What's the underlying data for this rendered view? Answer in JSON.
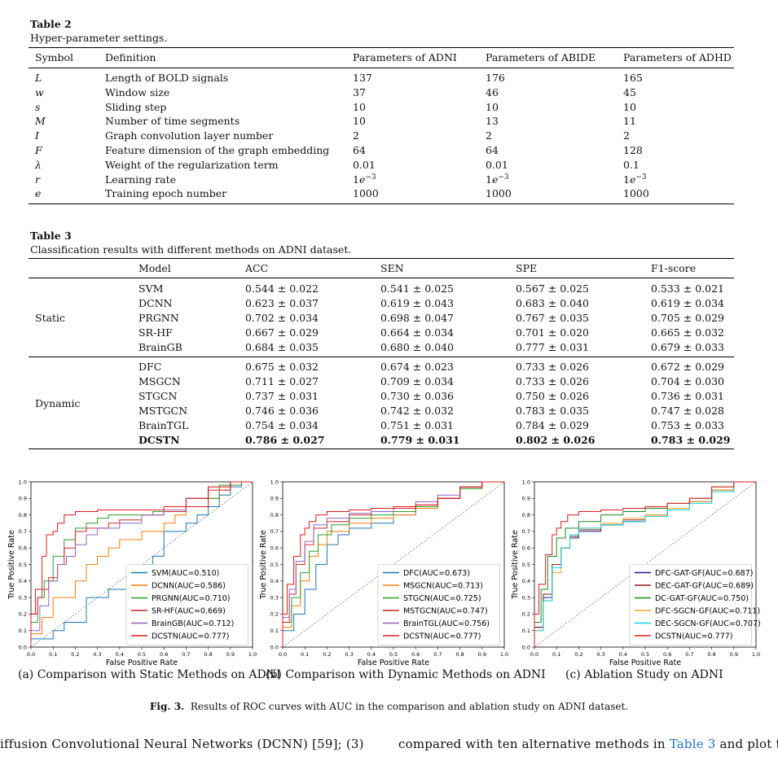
{
  "table2": {
    "label": "Table 2",
    "caption": "Hyper-parameter settings.",
    "headers": [
      "Symbol",
      "Definition",
      "Parameters of ADNI",
      "Parameters of ABIDE",
      "Parameters of ADHD"
    ],
    "rows": [
      {
        "sym": "L",
        "def": "Length of BOLD signals",
        "adni": "137",
        "abide": "176",
        "adhd": "165"
      },
      {
        "sym": "w",
        "def": "Window size",
        "adni": "37",
        "abide": "46",
        "adhd": "45"
      },
      {
        "sym": "s",
        "def": "Sliding step",
        "adni": "10",
        "abide": "10",
        "adhd": "10"
      },
      {
        "sym": "M",
        "def": "Number of time segments",
        "adni": "10",
        "abide": "13",
        "adhd": "11"
      },
      {
        "sym": "I",
        "def": "Graph convolution layer number",
        "adni": "2",
        "abide": "2",
        "adhd": "2"
      },
      {
        "sym": "F",
        "def": "Feature dimension of the graph embedding",
        "adni": "64",
        "abide": "64",
        "adhd": "128"
      },
      {
        "sym": "λ",
        "def": "Weight of the regularization term",
        "adni": "0.01",
        "abide": "0.01",
        "adhd": "0.1"
      },
      {
        "sym": "r",
        "def": "Learning rate",
        "adni": "1e−3",
        "abide": "1e−3",
        "adhd": "1e−3"
      },
      {
        "sym": "e",
        "def": "Training epoch number",
        "adni": "1000",
        "abide": "1000",
        "adhd": "1000"
      }
    ]
  },
  "table3": {
    "label": "Table 3",
    "caption": "Classification results with different methods on ADNI dataset.",
    "headers": [
      "Model",
      "ACC",
      "SEN",
      "SPE",
      "F1-score"
    ],
    "groups": [
      {
        "name": "Static",
        "rows": [
          {
            "model": "SVM",
            "acc": "0.544 ± 0.022",
            "sen": "0.541 ± 0.025",
            "spe": "0.567 ± 0.025",
            "f1": "0.533 ± 0.021"
          },
          {
            "model": "DCNN",
            "acc": "0.623 ± 0.037",
            "sen": "0.619 ± 0.043",
            "spe": "0.683 ± 0.040",
            "f1": "0.619 ± 0.034"
          },
          {
            "model": "PRGNN",
            "acc": "0.702 ± 0.034",
            "sen": "0.698 ± 0.047",
            "spe": "0.767 ± 0.035",
            "f1": "0.705 ± 0.029"
          },
          {
            "model": "SR-HF",
            "acc": "0.667 ± 0.029",
            "sen": "0.664 ± 0.034",
            "spe": "0.701 ± 0.020",
            "f1": "0.665 ± 0.032"
          },
          {
            "model": "BrainGB",
            "acc": "0.684 ± 0.035",
            "sen": "0.680 ± 0.040",
            "spe": "0.777 ± 0.031",
            "f1": "0.679 ± 0.033"
          }
        ]
      },
      {
        "name": "Dynamic",
        "rows": [
          {
            "model": "DFC",
            "acc": "0.675 ± 0.032",
            "sen": "0.674 ± 0.023",
            "spe": "0.733 ± 0.026",
            "f1": "0.672 ± 0.029"
          },
          {
            "model": "MSGCN",
            "acc": "0.711 ± 0.027",
            "sen": "0.709 ± 0.034",
            "spe": "0.733 ± 0.026",
            "f1": "0.704 ± 0.030"
          },
          {
            "model": "STGCN",
            "acc": "0.737 ± 0.031",
            "sen": "0.730 ± 0.036",
            "spe": "0.750 ± 0.026",
            "f1": "0.736 ± 0.031"
          },
          {
            "model": "MSTGCN",
            "acc": "0.746 ± 0.036",
            "sen": "0.742 ± 0.032",
            "spe": "0.783 ± 0.035",
            "f1": "0.747 ± 0.028"
          },
          {
            "model": "BrainTGL",
            "acc": "0.754 ± 0.034",
            "sen": "0.751 ± 0.031",
            "spe": "0.784 ± 0.029",
            "f1": "0.753 ± 0.033"
          },
          {
            "model": "DCSTN",
            "acc": "0.786 ± 0.027",
            "sen": "0.779 ± 0.031",
            "spe": "0.802 ± 0.026",
            "f1": "0.783 ± 0.029",
            "bold": true
          }
        ]
      }
    ]
  },
  "chart_data": [
    {
      "type": "line",
      "xlabel": "False Positive Rate",
      "ylabel": "True Positive Rate",
      "xlim": [
        0,
        1
      ],
      "ylim": [
        0,
        1
      ],
      "ticks": [
        "0.0",
        "0.1",
        "0.2",
        "0.3",
        "0.4",
        "0.5",
        "0.6",
        "0.7",
        "0.8",
        "0.9",
        "1.0"
      ],
      "legend_position": "lower-right",
      "subcaption": "(a) Comparison with Static Methods on ADNI",
      "series": [
        {
          "name": "SVM(AUC=0.510)",
          "color": "#1f77b4",
          "x": [
            0,
            0.1,
            0.15,
            0.25,
            0.35,
            0.45,
            0.5,
            0.55,
            0.6,
            0.7,
            0.75,
            0.8,
            0.85,
            0.9,
            0.95,
            1.0
          ],
          "y": [
            0,
            0.05,
            0.1,
            0.15,
            0.3,
            0.35,
            0.4,
            0.5,
            0.55,
            0.7,
            0.75,
            0.8,
            0.85,
            0.92,
            0.97,
            1.0
          ]
        },
        {
          "name": "DCNN(AUC=0.586)",
          "color": "#ff7f0e",
          "x": [
            0,
            0.05,
            0.1,
            0.2,
            0.25,
            0.3,
            0.35,
            0.4,
            0.5,
            0.6,
            0.65,
            0.7,
            0.8,
            0.85,
            0.9,
            1.0
          ],
          "y": [
            0,
            0.08,
            0.18,
            0.3,
            0.4,
            0.5,
            0.55,
            0.6,
            0.65,
            0.7,
            0.75,
            0.8,
            0.85,
            0.9,
            0.95,
            1.0
          ]
        },
        {
          "name": "PRGNN(AUC=0.710)",
          "color": "#2ca02c",
          "x": [
            0,
            0.03,
            0.06,
            0.1,
            0.15,
            0.2,
            0.25,
            0.3,
            0.35,
            0.45,
            0.55,
            0.7,
            0.85,
            0.95,
            1.0
          ],
          "y": [
            0,
            0.15,
            0.3,
            0.4,
            0.55,
            0.65,
            0.72,
            0.75,
            0.78,
            0.8,
            0.8,
            0.82,
            0.9,
            0.98,
            1.0
          ]
        },
        {
          "name": "SR-HF(AUC=0.669)",
          "color": "#d62728",
          "x": [
            0,
            0.03,
            0.05,
            0.08,
            0.12,
            0.15,
            0.2,
            0.25,
            0.35,
            0.4,
            0.5,
            0.6,
            0.7,
            0.8,
            0.9,
            1.0
          ],
          "y": [
            0,
            0.2,
            0.3,
            0.35,
            0.42,
            0.5,
            0.6,
            0.7,
            0.72,
            0.75,
            0.77,
            0.8,
            0.82,
            0.85,
            0.95,
            1.0
          ]
        },
        {
          "name": "BrainGB(AUC=0.712)",
          "color": "#9467bd",
          "x": [
            0,
            0.04,
            0.08,
            0.12,
            0.16,
            0.2,
            0.25,
            0.3,
            0.4,
            0.5,
            0.6,
            0.7,
            0.8,
            0.9,
            1.0
          ],
          "y": [
            0,
            0.1,
            0.25,
            0.4,
            0.5,
            0.55,
            0.62,
            0.68,
            0.72,
            0.75,
            0.8,
            0.83,
            0.9,
            0.97,
            1.0
          ]
        },
        {
          "name": "DCSTN(AUC=0.777)",
          "color": "#e31a1c",
          "x": [
            0,
            0.02,
            0.05,
            0.07,
            0.1,
            0.12,
            0.15,
            0.2,
            0.3,
            0.4,
            0.5,
            0.6,
            0.7,
            0.8,
            0.9,
            1.0
          ],
          "y": [
            0,
            0.2,
            0.35,
            0.55,
            0.68,
            0.7,
            0.75,
            0.8,
            0.82,
            0.83,
            0.83,
            0.83,
            0.85,
            0.9,
            0.97,
            1.0
          ]
        }
      ]
    },
    {
      "type": "line",
      "xlabel": "False Positive Rate",
      "ylabel": "True Positive Rate",
      "xlim": [
        0,
        1
      ],
      "ylim": [
        0,
        1
      ],
      "ticks": [
        "0.0",
        "0.1",
        "0.2",
        "0.3",
        "0.4",
        "0.5",
        "0.6",
        "0.7",
        "0.8",
        "0.9",
        "1.0"
      ],
      "legend_position": "lower-right",
      "subcaption": "(b) Comparison with Dynamic Methods on ADNI",
      "series": [
        {
          "name": "DFC(AUC=0.673)",
          "color": "#1f77b4",
          "x": [
            0,
            0.05,
            0.1,
            0.15,
            0.2,
            0.25,
            0.3,
            0.4,
            0.5,
            0.6,
            0.7,
            0.8,
            0.9,
            1.0
          ],
          "y": [
            0,
            0.1,
            0.2,
            0.35,
            0.5,
            0.62,
            0.68,
            0.72,
            0.75,
            0.8,
            0.85,
            0.9,
            0.96,
            1.0
          ]
        },
        {
          "name": "MSGCN(AUC=0.713)",
          "color": "#ff7f0e",
          "x": [
            0,
            0.04,
            0.08,
            0.12,
            0.16,
            0.2,
            0.3,
            0.4,
            0.5,
            0.6,
            0.7,
            0.8,
            0.9,
            1.0
          ],
          "y": [
            0,
            0.12,
            0.25,
            0.4,
            0.55,
            0.62,
            0.7,
            0.75,
            0.78,
            0.8,
            0.84,
            0.9,
            0.96,
            1.0
          ]
        },
        {
          "name": "STGCN(AUC=0.725)",
          "color": "#2ca02c",
          "x": [
            0,
            0.04,
            0.08,
            0.12,
            0.16,
            0.22,
            0.3,
            0.4,
            0.5,
            0.6,
            0.7,
            0.8,
            0.9,
            1.0
          ],
          "y": [
            0,
            0.15,
            0.3,
            0.45,
            0.58,
            0.68,
            0.74,
            0.78,
            0.8,
            0.82,
            0.85,
            0.9,
            0.96,
            1.0
          ]
        },
        {
          "name": "MSTGCN(AUC=0.747)",
          "color": "#d62728",
          "x": [
            0,
            0.03,
            0.06,
            0.1,
            0.14,
            0.2,
            0.3,
            0.4,
            0.5,
            0.6,
            0.7,
            0.8,
            0.9,
            1.0
          ],
          "y": [
            0,
            0.15,
            0.32,
            0.5,
            0.62,
            0.72,
            0.76,
            0.8,
            0.82,
            0.84,
            0.86,
            0.9,
            0.97,
            1.0
          ]
        },
        {
          "name": "BrainTGL(AUC=0.756)",
          "color": "#9467bd",
          "x": [
            0,
            0.03,
            0.06,
            0.1,
            0.14,
            0.2,
            0.3,
            0.4,
            0.5,
            0.6,
            0.7,
            0.8,
            0.9,
            1.0
          ],
          "y": [
            0,
            0.18,
            0.35,
            0.52,
            0.64,
            0.74,
            0.78,
            0.81,
            0.82,
            0.85,
            0.88,
            0.92,
            0.97,
            1.0
          ]
        },
        {
          "name": "DCSTN(AUC=0.777)",
          "color": "#e31a1c",
          "x": [
            0,
            0.02,
            0.05,
            0.08,
            0.1,
            0.12,
            0.15,
            0.2,
            0.3,
            0.4,
            0.5,
            0.6,
            0.7,
            0.8,
            0.9,
            1.0
          ],
          "y": [
            0,
            0.2,
            0.38,
            0.55,
            0.68,
            0.72,
            0.76,
            0.8,
            0.82,
            0.83,
            0.84,
            0.85,
            0.86,
            0.9,
            0.97,
            1.0
          ]
        }
      ]
    },
    {
      "type": "line",
      "xlabel": "False Positive Rate",
      "ylabel": "True Positive Rate",
      "xlim": [
        0,
        1
      ],
      "ylim": [
        0,
        1
      ],
      "ticks": [
        "0.0",
        "0.1",
        "0.2",
        "0.3",
        "0.4",
        "0.5",
        "0.6",
        "0.7",
        "0.8",
        "0.9",
        "1.0"
      ],
      "legend_position": "lower-right",
      "subcaption": "(c) Ablation Study on ADNI",
      "series": [
        {
          "name": "DFC-GAT-GF(AUC=0.687)",
          "color": "#1f1f8f",
          "x": [
            0,
            0.04,
            0.08,
            0.12,
            0.16,
            0.2,
            0.3,
            0.4,
            0.5,
            0.6,
            0.7,
            0.8,
            0.9,
            1.0
          ],
          "y": [
            0,
            0.12,
            0.3,
            0.48,
            0.6,
            0.66,
            0.7,
            0.74,
            0.76,
            0.8,
            0.84,
            0.88,
            0.95,
            1.0
          ]
        },
        {
          "name": "DEC-GAT-GF(AUC=0.689)",
          "color": "#8b1a1a",
          "x": [
            0,
            0.04,
            0.08,
            0.12,
            0.16,
            0.2,
            0.3,
            0.4,
            0.5,
            0.6,
            0.7,
            0.8,
            0.9,
            1.0
          ],
          "y": [
            0,
            0.12,
            0.32,
            0.5,
            0.6,
            0.67,
            0.71,
            0.74,
            0.77,
            0.8,
            0.84,
            0.88,
            0.95,
            1.0
          ]
        },
        {
          "name": "DC-GAT-GF(AUC=0.750)",
          "color": "#1a8a1a",
          "x": [
            0,
            0.03,
            0.06,
            0.1,
            0.14,
            0.2,
            0.3,
            0.4,
            0.5,
            0.6,
            0.7,
            0.8,
            0.9,
            1.0
          ],
          "y": [
            0,
            0.15,
            0.35,
            0.55,
            0.66,
            0.72,
            0.76,
            0.8,
            0.82,
            0.84,
            0.87,
            0.9,
            0.97,
            1.0
          ]
        },
        {
          "name": "DFC-SGCN-GF(AUC=0.711)",
          "color": "#f5a623",
          "x": [
            0,
            0.04,
            0.08,
            0.12,
            0.16,
            0.2,
            0.3,
            0.4,
            0.5,
            0.6,
            0.7,
            0.8,
            0.9,
            1.0
          ],
          "y": [
            0,
            0.1,
            0.28,
            0.45,
            0.6,
            0.68,
            0.72,
            0.75,
            0.78,
            0.8,
            0.84,
            0.88,
            0.95,
            1.0
          ]
        },
        {
          "name": "DEC-SGCN-GF(AUC=0.707)",
          "color": "#17d4e0",
          "x": [
            0,
            0.04,
            0.08,
            0.12,
            0.16,
            0.2,
            0.3,
            0.4,
            0.5,
            0.6,
            0.7,
            0.8,
            0.9,
            1.0
          ],
          "y": [
            0,
            0.1,
            0.28,
            0.48,
            0.6,
            0.68,
            0.72,
            0.74,
            0.76,
            0.79,
            0.83,
            0.87,
            0.94,
            1.0
          ]
        },
        {
          "name": "DCSTN(AUC=0.777)",
          "color": "#e31a1c",
          "x": [
            0,
            0.02,
            0.05,
            0.08,
            0.1,
            0.12,
            0.15,
            0.2,
            0.3,
            0.4,
            0.5,
            0.6,
            0.7,
            0.8,
            0.9,
            1.0
          ],
          "y": [
            0,
            0.2,
            0.38,
            0.56,
            0.68,
            0.72,
            0.76,
            0.8,
            0.82,
            0.83,
            0.84,
            0.85,
            0.87,
            0.9,
            0.97,
            1.0
          ]
        }
      ]
    }
  ],
  "figure": {
    "label": "Fig. 3.",
    "caption": "Results of ROC curves with AUC in the comparison and ablation study on ADNI dataset."
  },
  "body_text": {
    "left": "iffusion Convolutional Neural Networks (DCNN) [59]; (3)",
    "right_before_link": "compared with ten alternative methods in ",
    "right_link": "Table 3",
    "right_after_link": " and plot th"
  }
}
